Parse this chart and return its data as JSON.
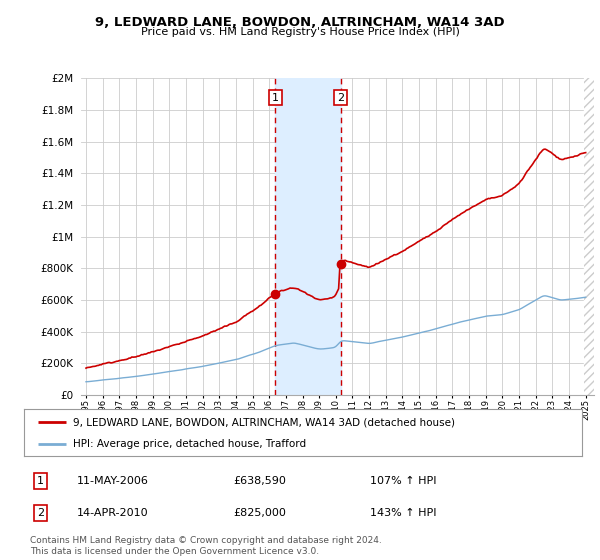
{
  "title": "9, LEDWARD LANE, BOWDON, ALTRINCHAM, WA14 3AD",
  "subtitle": "Price paid vs. HM Land Registry's House Price Index (HPI)",
  "legend_property": "9, LEDWARD LANE, BOWDON, ALTRINCHAM, WA14 3AD (detached house)",
  "legend_hpi": "HPI: Average price, detached house, Trafford",
  "sale1_date": "11-MAY-2006",
  "sale1_price": 638590,
  "sale1_label": "1",
  "sale1_pct": "107% ↑ HPI",
  "sale2_date": "14-APR-2010",
  "sale2_price": 825000,
  "sale2_label": "2",
  "sale2_pct": "143% ↑ HPI",
  "footer": "Contains HM Land Registry data © Crown copyright and database right 2024.\nThis data is licensed under the Open Government Licence v3.0.",
  "sale1_year": 2006.37,
  "sale2_year": 2010.29,
  "property_color": "#cc0000",
  "hpi_color": "#7aadd4",
  "shade_color": "#ddeeff",
  "marker_color": "#cc0000",
  "ylim": [
    0,
    2000000
  ],
  "xlim_start": 1995,
  "xlim_end": 2025.5,
  "background_color": "#ffffff",
  "grid_color": "#cccccc",
  "hatch_color": "#cccccc"
}
